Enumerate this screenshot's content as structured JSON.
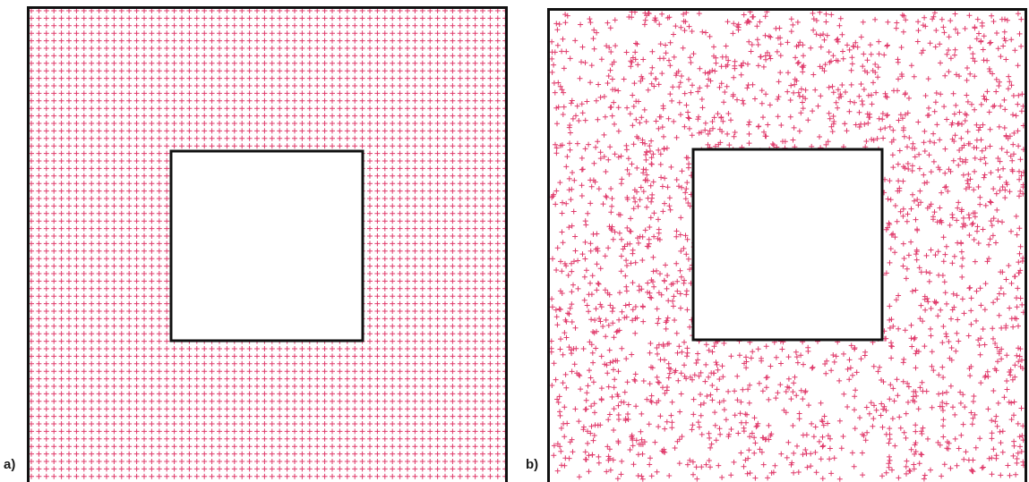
{
  "figure": {
    "panels": [
      {
        "label": "a)",
        "distribution": "regular grid",
        "hole_present": true
      },
      {
        "label": "b)",
        "distribution": "random",
        "hole_present": true
      }
    ],
    "colors": {
      "marker": "#e0396a",
      "border": "#111111",
      "background": "#ffffff"
    },
    "marker_icon": "plus-marker"
  }
}
